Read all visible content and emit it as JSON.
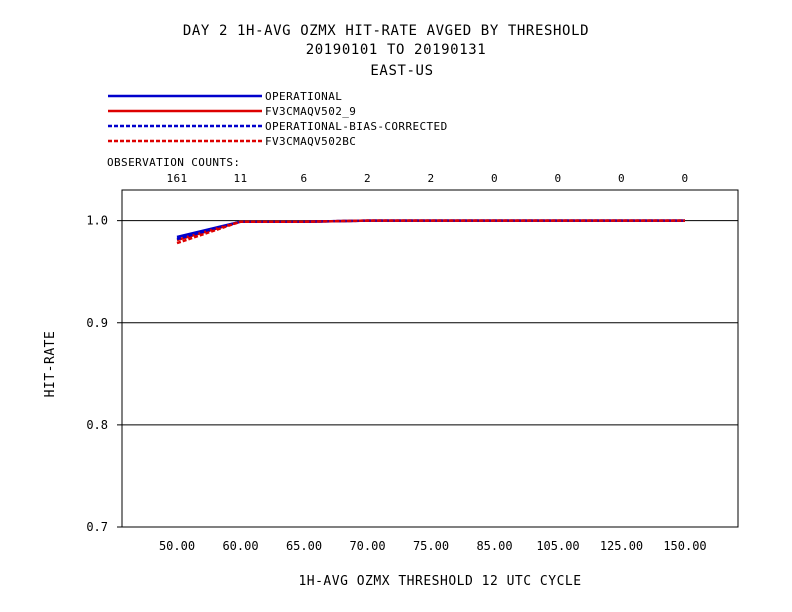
{
  "chart_data": {
    "type": "line",
    "title_lines": [
      "DAY 2   1H-AVG OZMX HIT-RATE   AVGED BY THRESHOLD",
      "20190101 TO 20190131",
      "EAST-US"
    ],
    "xlabel": "1H-AVG OZMX THRESHOLD     12 UTC CYCLE",
    "ylabel": "HIT-RATE",
    "categories": [
      "50.00",
      "60.00",
      "65.00",
      "70.00",
      "75.00",
      "85.00",
      "105.00",
      "125.00",
      "150.00"
    ],
    "observation_counts_label": "OBSERVATION COUNTS:",
    "observation_counts": [
      "161",
      "11",
      "6",
      "2",
      "2",
      "0",
      "0",
      "0",
      "0"
    ],
    "y_ticks": [
      "0.7",
      "0.8",
      "0.9",
      "1.0"
    ],
    "ylim": [
      0.7,
      1.03
    ],
    "grid": true,
    "legend_position": "top-left",
    "series": [
      {
        "name": "OPERATIONAL",
        "color": "#0000cc",
        "dashed": false,
        "values": [
          0.984,
          0.999,
          0.999,
          1.0,
          1.0,
          1.0,
          1.0,
          1.0,
          1.0
        ]
      },
      {
        "name": "FV3CMAQV502_9",
        "color": "#dd0000",
        "dashed": false,
        "values": [
          0.981,
          0.999,
          0.999,
          1.0,
          1.0,
          1.0,
          1.0,
          1.0,
          1.0
        ]
      },
      {
        "name": "OPERATIONAL-BIAS-CORRECTED",
        "color": "#0000cc",
        "dashed": true,
        "values": [
          0.982,
          0.999,
          0.999,
          1.0,
          1.0,
          1.0,
          1.0,
          1.0,
          1.0
        ]
      },
      {
        "name": "FV3CMAQV502BC",
        "color": "#dd0000",
        "dashed": true,
        "values": [
          0.978,
          0.999,
          0.999,
          1.0,
          1.0,
          1.0,
          1.0,
          1.0,
          1.0
        ]
      }
    ]
  }
}
